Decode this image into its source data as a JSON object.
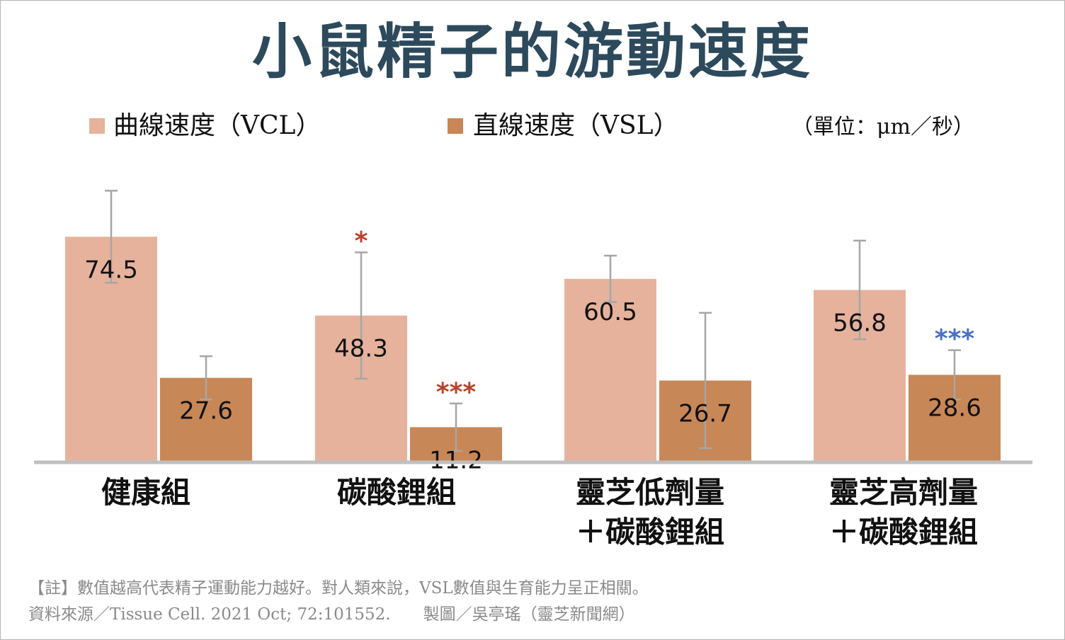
{
  "chart_data": {
    "type": "bar",
    "title": "小鼠精子的游動速度",
    "unit_note": "（單位：μm／秒）",
    "categories": [
      [
        "健康組"
      ],
      [
        "碳酸鋰組"
      ],
      [
        "靈芝低劑量",
        "＋碳酸鋰組"
      ],
      [
        "靈芝高劑量",
        "＋碳酸鋰組"
      ]
    ],
    "series": [
      {
        "name": "曲線速度（VCL）",
        "color": "#e6b29c",
        "values": [
          74.5,
          48.3,
          60.5,
          56.8
        ],
        "error": [
          15.3,
          21.0,
          7.7,
          16.4
        ],
        "significance": [
          "",
          "*",
          "",
          ""
        ],
        "significance_color": [
          "",
          "#b5452a",
          "",
          ""
        ]
      },
      {
        "name": "直線速度（VSL）",
        "color": "#c88756",
        "values": [
          27.6,
          11.2,
          26.7,
          28.6
        ],
        "error": [
          7.2,
          7.9,
          22.5,
          8.2
        ],
        "significance": [
          "",
          "***",
          "",
          "***"
        ],
        "significance_color": [
          "",
          "#b5452a",
          "",
          "#4a6fc4"
        ]
      }
    ],
    "ylim": [
      0,
      105
    ],
    "xlabel": "",
    "ylabel": "",
    "grid": false,
    "legend_position": "top"
  },
  "footer": {
    "note": "【註】數值越高代表精子運動能力越好。對人類來說，VSL數值與生育能力呈正相關。",
    "source": "資料來源／Tissue Cell. 2021 Oct; 72:101552.　　製圖／吳亭瑤（靈芝新聞網）"
  }
}
